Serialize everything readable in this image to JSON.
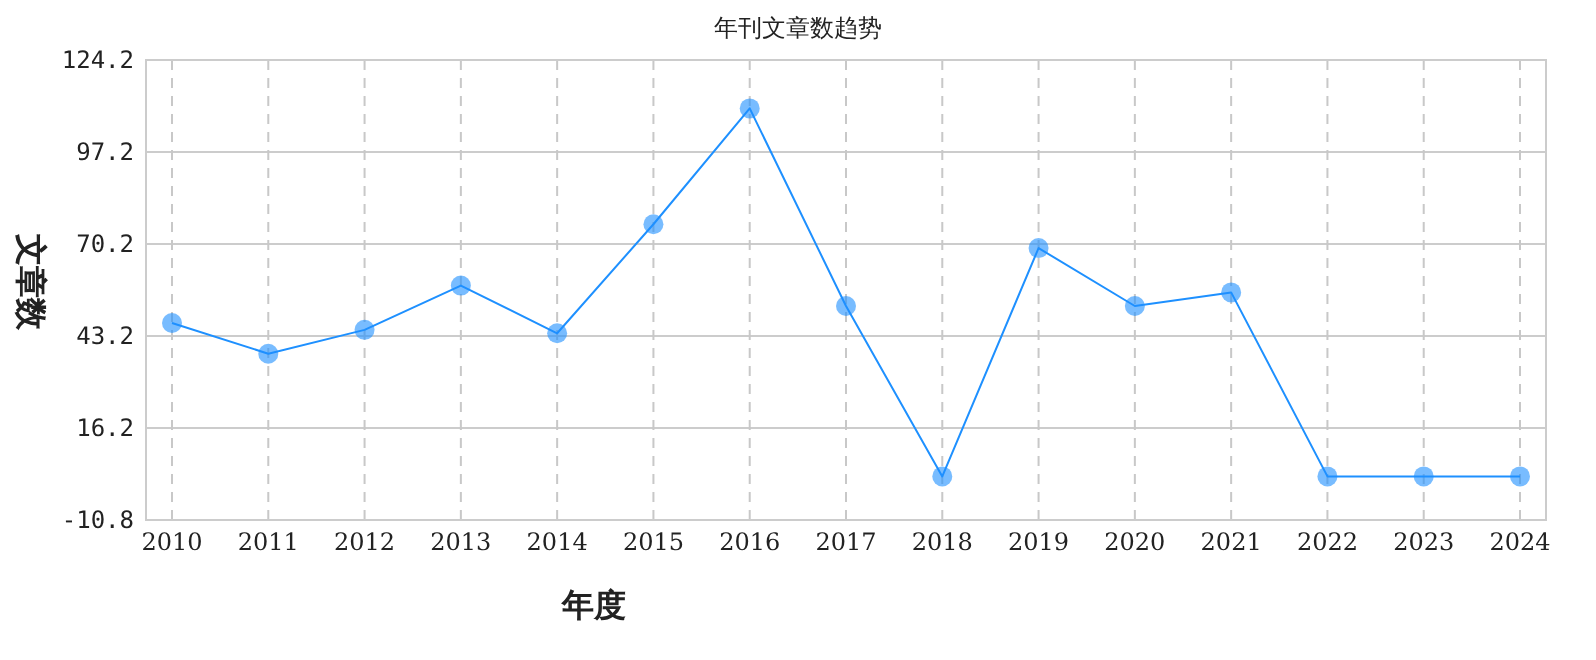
{
  "chart_data": {
    "type": "line",
    "title": "年刊文章数趋势",
    "xlabel": "年度",
    "ylabel": "文章数",
    "categories": [
      "2010",
      "2011",
      "2012",
      "2013",
      "2014",
      "2015",
      "2016",
      "2017",
      "2018",
      "2019",
      "2020",
      "2021",
      "2022",
      "2023",
      "2024"
    ],
    "series": [
      {
        "color": "#1e90ff",
        "values": [
          47,
          38,
          45,
          58,
          44,
          76,
          110,
          52,
          2,
          69,
          52,
          56,
          2,
          2,
          2
        ]
      }
    ],
    "ylim": [
      -10.8,
      124.2
    ],
    "yticks": [
      -10.8,
      16.2,
      43.2,
      70.2,
      97.2,
      124.2
    ],
    "grid": true,
    "marker": "circle",
    "line_style": "solid"
  }
}
